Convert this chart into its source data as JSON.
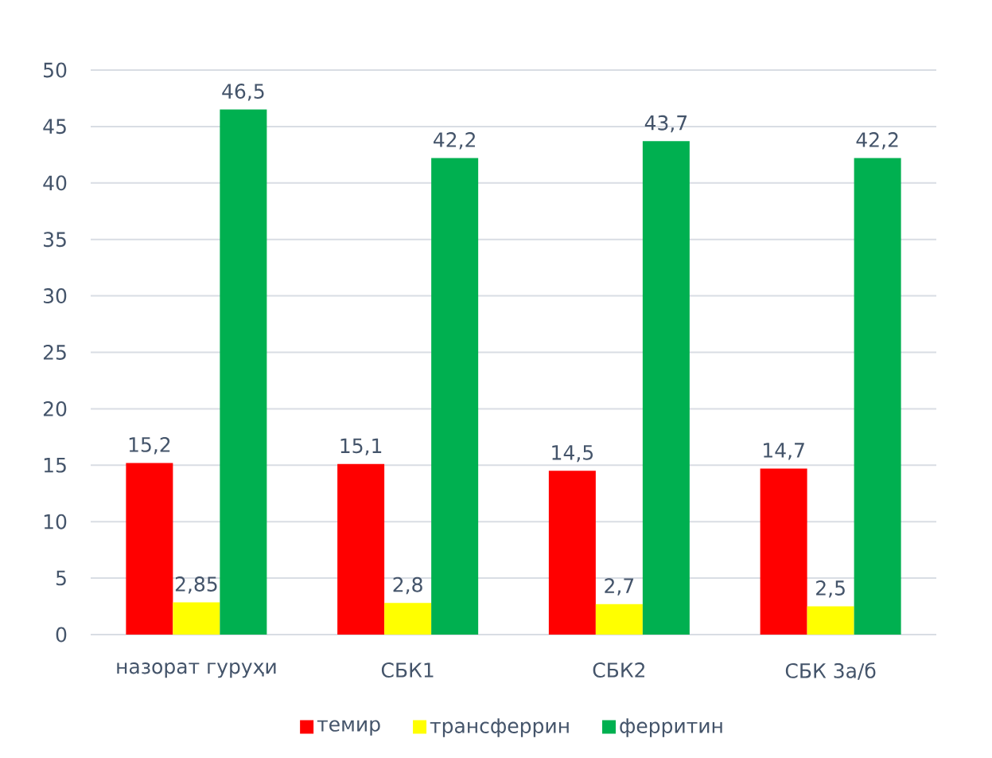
{
  "chart_data": {
    "type": "bar",
    "categories": [
      "назорат гуруҳи",
      "СБК1",
      "СБК2",
      "СБК 3а/б"
    ],
    "series": [
      {
        "name": "темир",
        "color": "#ff0000",
        "values": [
          15.2,
          15.1,
          14.5,
          14.7
        ],
        "value_labels": [
          "15,2",
          "15,1",
          "14,5",
          "14,7"
        ]
      },
      {
        "name": "трансферрин",
        "color": "#ffff00",
        "values": [
          2.85,
          2.8,
          2.7,
          2.5
        ],
        "value_labels": [
          "2,85",
          "2,8",
          "2,7",
          "2,5"
        ]
      },
      {
        "name": "ферритин",
        "color": "#00b050",
        "values": [
          46.5,
          42.2,
          43.7,
          42.2
        ],
        "value_labels": [
          "46,5",
          "42,2",
          "43,7",
          "42,2"
        ]
      }
    ],
    "ylim": [
      0,
      50
    ],
    "yticks": [
      0,
      5,
      10,
      15,
      20,
      25,
      30,
      35,
      40,
      45,
      50
    ],
    "grid": "y",
    "legend": "bottom"
  }
}
